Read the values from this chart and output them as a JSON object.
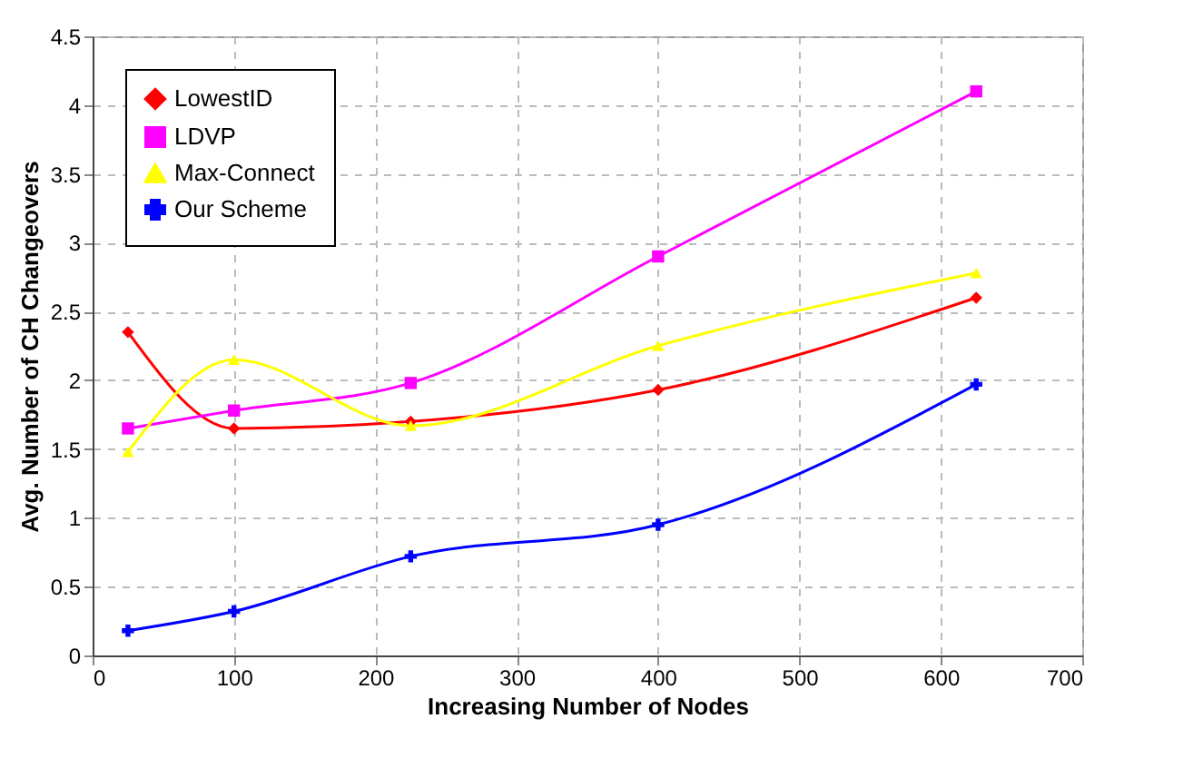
{
  "chart_data": {
    "type": "line",
    "xlabel": "Increasing Number of Nodes",
    "ylabel": "Avg. Number of CH Changeovers",
    "x": [
      25,
      100,
      225,
      400,
      625
    ],
    "series": [
      {
        "name": "LowestID",
        "color": "#ff0000",
        "marker": "diamond",
        "values": [
          2.35,
          1.65,
          1.7,
          1.93,
          2.6
        ]
      },
      {
        "name": "LDVP",
        "color": "#ff00ff",
        "marker": "square",
        "values": [
          1.65,
          1.78,
          1.98,
          2.9,
          4.1
        ]
      },
      {
        "name": "Max-Connect",
        "color": "#ffff00",
        "marker": "triangle",
        "values": [
          1.48,
          2.15,
          1.67,
          2.25,
          2.78
        ]
      },
      {
        "name": "Our Scheme",
        "color": "#0000ff",
        "marker": "cross",
        "values": [
          0.18,
          0.32,
          0.72,
          0.95,
          1.97
        ]
      }
    ],
    "xlim": [
      0,
      700
    ],
    "xticks": [
      0,
      100,
      200,
      300,
      400,
      500,
      600,
      700
    ],
    "ylim": [
      0,
      4.5
    ],
    "yticks": [
      0,
      0.5,
      1,
      1.5,
      2,
      2.5,
      3,
      3.5,
      4,
      4.5
    ],
    "grid": true,
    "legend": "top left"
  }
}
